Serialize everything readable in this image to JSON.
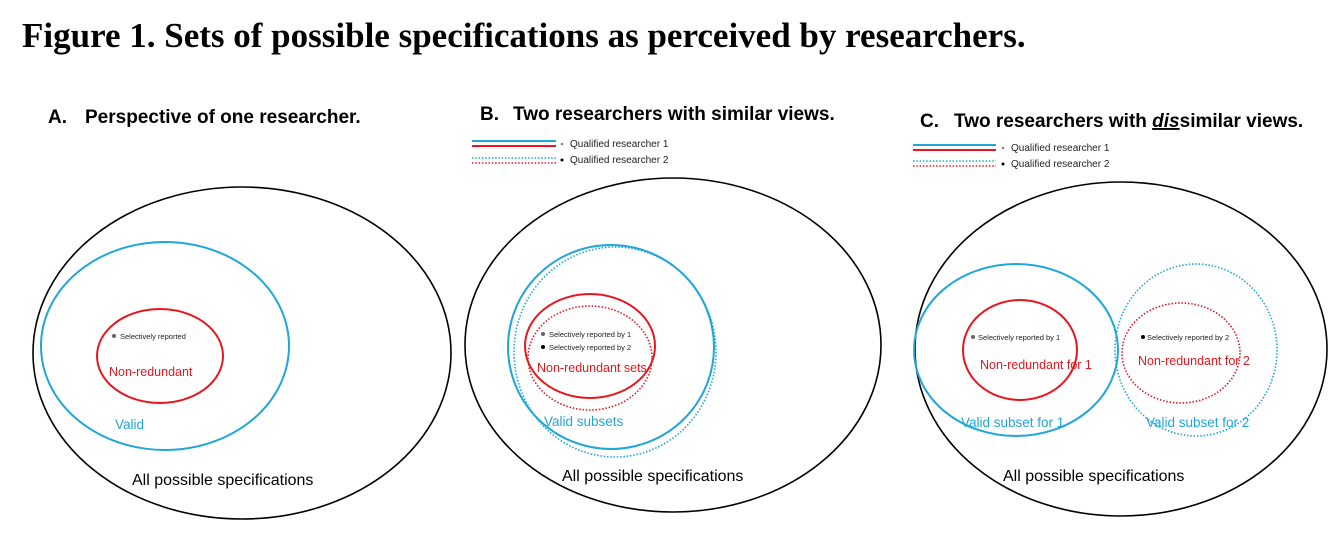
{
  "figure": {
    "title": "Figure 1. Sets of possible specifications as perceived by researchers."
  },
  "colors": {
    "outer": "#000000",
    "valid": "#1fa6dc",
    "non_redundant": "#e8161e"
  },
  "panel_a": {
    "letter": "A.",
    "title": "Perspective of one researcher.",
    "all_label": "All possible specifications",
    "valid_label": "Valid",
    "nonredundant_label": "Non-redundant",
    "dot_label": "Selectively reported"
  },
  "panel_b": {
    "letter": "B.",
    "title": "Two researchers with similar views.",
    "legend_1": "Qualified researcher 1",
    "legend_2": "Qualified researcher 2",
    "all_label": "All possible specifications",
    "valid_label": "Valid subsets",
    "nonredundant_label": "Non-redundant sets",
    "dot_1_label": "Selectively reported by 1",
    "dot_2_label": "Selectively reported by 2"
  },
  "panel_c": {
    "letter": "C.",
    "title_pre": "Two researchers with ",
    "title_emph": "dis",
    "title_post": "similar views.",
    "legend_1": "Qualified researcher 1",
    "legend_2": "Qualified researcher 2",
    "all_label": "All possible specifications",
    "valid_1_label": "Valid subset for 1",
    "valid_2_label": "Valid subset for 2",
    "nonredundant_1_label": "Non-redundant for 1",
    "nonredundant_2_label": "Non-redundant for 2",
    "dot_1_label": "Selectively reported by 1",
    "dot_2_label": "Selectively reported by 2"
  }
}
